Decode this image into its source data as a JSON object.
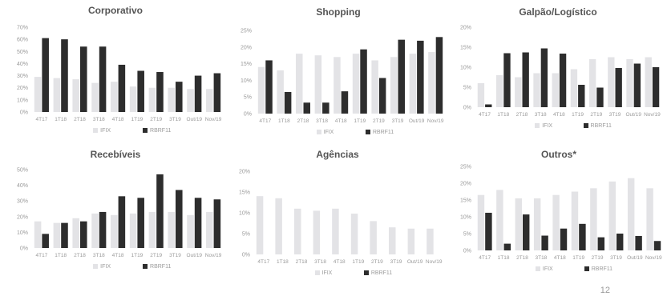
{
  "colors": {
    "ifix": "#e3e3e6",
    "rbrf11": "#2d2d2d",
    "axis_text": "#9a9a9a",
    "title": "#555555"
  },
  "page_number": "12",
  "chart_data": [
    {
      "type": "bar",
      "title": "Corporativo",
      "categories": [
        "4T17",
        "1T18",
        "2T18",
        "3T18",
        "4T18",
        "1T19",
        "2T19",
        "3T19",
        "Out/19",
        "Nov/19"
      ],
      "yticks": [
        "0%",
        "10%",
        "20%",
        "30%",
        "40%",
        "50%",
        "60%",
        "70%"
      ],
      "ylim": [
        0,
        70
      ],
      "series": [
        {
          "name": "IFIX",
          "values": [
            29,
            28,
            27,
            24,
            25,
            21,
            20,
            20,
            19,
            19
          ]
        },
        {
          "name": "RBRF11",
          "values": [
            61,
            60,
            54,
            54,
            39,
            34,
            33,
            25,
            30,
            32
          ]
        }
      ]
    },
    {
      "type": "bar",
      "title": "Shopping",
      "categories": [
        "4T17",
        "1T18",
        "2T18",
        "3T18",
        "4T18",
        "1T19",
        "2T19",
        "3T19",
        "Out/19",
        "Nov/19"
      ],
      "yticks": [
        "0%",
        "5%",
        "10%",
        "15%",
        "20%",
        "25%"
      ],
      "ylim": [
        0,
        25
      ],
      "series": [
        {
          "name": "IFIX",
          "values": [
            14,
            13,
            18,
            17.5,
            17,
            18,
            16,
            17,
            18,
            18.5
          ]
        },
        {
          "name": "RBRF11",
          "values": [
            16,
            6.5,
            3.3,
            3.3,
            6.7,
            19.3,
            10.7,
            22.2,
            21.9,
            23
          ]
        }
      ]
    },
    {
      "type": "bar",
      "title": "Galpão/Logístico",
      "categories": [
        "4T17",
        "1T18",
        "2T18",
        "3T18",
        "4T18",
        "1T19",
        "2T19",
        "3T19",
        "Out/19",
        "Nov/19"
      ],
      "yticks": [
        "0%",
        "5%",
        "10%",
        "15%",
        "20%"
      ],
      "ylim": [
        0,
        20
      ],
      "series": [
        {
          "name": "IFIX",
          "values": [
            6,
            8,
            7.5,
            8.5,
            8.5,
            9.5,
            12,
            12.5,
            12,
            12.5
          ]
        },
        {
          "name": "RBRF11",
          "values": [
            0.7,
            13.5,
            13.7,
            14.7,
            13.4,
            5.6,
            4.9,
            9.8,
            10.9,
            10
          ]
        }
      ]
    },
    {
      "type": "bar",
      "title": "Recebíveis",
      "categories": [
        "4T17",
        "1T18",
        "2T18",
        "3T18",
        "4T18",
        "1T19",
        "2T19",
        "3T19",
        "Out/19",
        "Nov/19"
      ],
      "yticks": [
        "0%",
        "10%",
        "20%",
        "30%",
        "40%",
        "50%"
      ],
      "ylim": [
        0,
        50
      ],
      "series": [
        {
          "name": "IFIX",
          "values": [
            17,
            16,
            19,
            22,
            21,
            22,
            23,
            23,
            21,
            23
          ]
        },
        {
          "name": "RBRF11",
          "values": [
            9,
            16,
            17,
            23,
            33,
            32,
            47,
            37,
            32,
            31
          ]
        }
      ]
    },
    {
      "type": "bar",
      "title": "Agências",
      "categories": [
        "4T17",
        "1T18",
        "2T18",
        "3T18",
        "4T18",
        "1T19",
        "2T19",
        "3T19",
        "Out/19",
        "Nov/19"
      ],
      "yticks": [
        "0%",
        "5%",
        "10%",
        "15%",
        "20%"
      ],
      "ylim": [
        0,
        20
      ],
      "series": [
        {
          "name": "IFIX",
          "values": [
            14,
            13.5,
            11,
            10.5,
            11,
            9.8,
            8,
            6.5,
            6.2,
            6.2
          ]
        },
        {
          "name": "RBRF11",
          "values": [
            0,
            0,
            0,
            0,
            0,
            0,
            0,
            0,
            0,
            0
          ]
        }
      ]
    },
    {
      "type": "bar",
      "title": "Outros*",
      "categories": [
        "4T17",
        "1T18",
        "2T18",
        "3T18",
        "4T18",
        "1T19",
        "2T19",
        "3T19",
        "Out/19",
        "Nov/19"
      ],
      "yticks": [
        "0%",
        "5%",
        "10%",
        "15%",
        "20%",
        "25%"
      ],
      "ylim": [
        0,
        25
      ],
      "series": [
        {
          "name": "IFIX",
          "values": [
            16.5,
            18,
            15.5,
            15.5,
            16.5,
            17.5,
            18.5,
            20.5,
            21.5,
            18.5
          ]
        },
        {
          "name": "RBRF11",
          "values": [
            11.2,
            2,
            10.7,
            4.4,
            6.5,
            7.9,
            3.9,
            5,
            4.3,
            2.8
          ]
        }
      ]
    }
  ]
}
